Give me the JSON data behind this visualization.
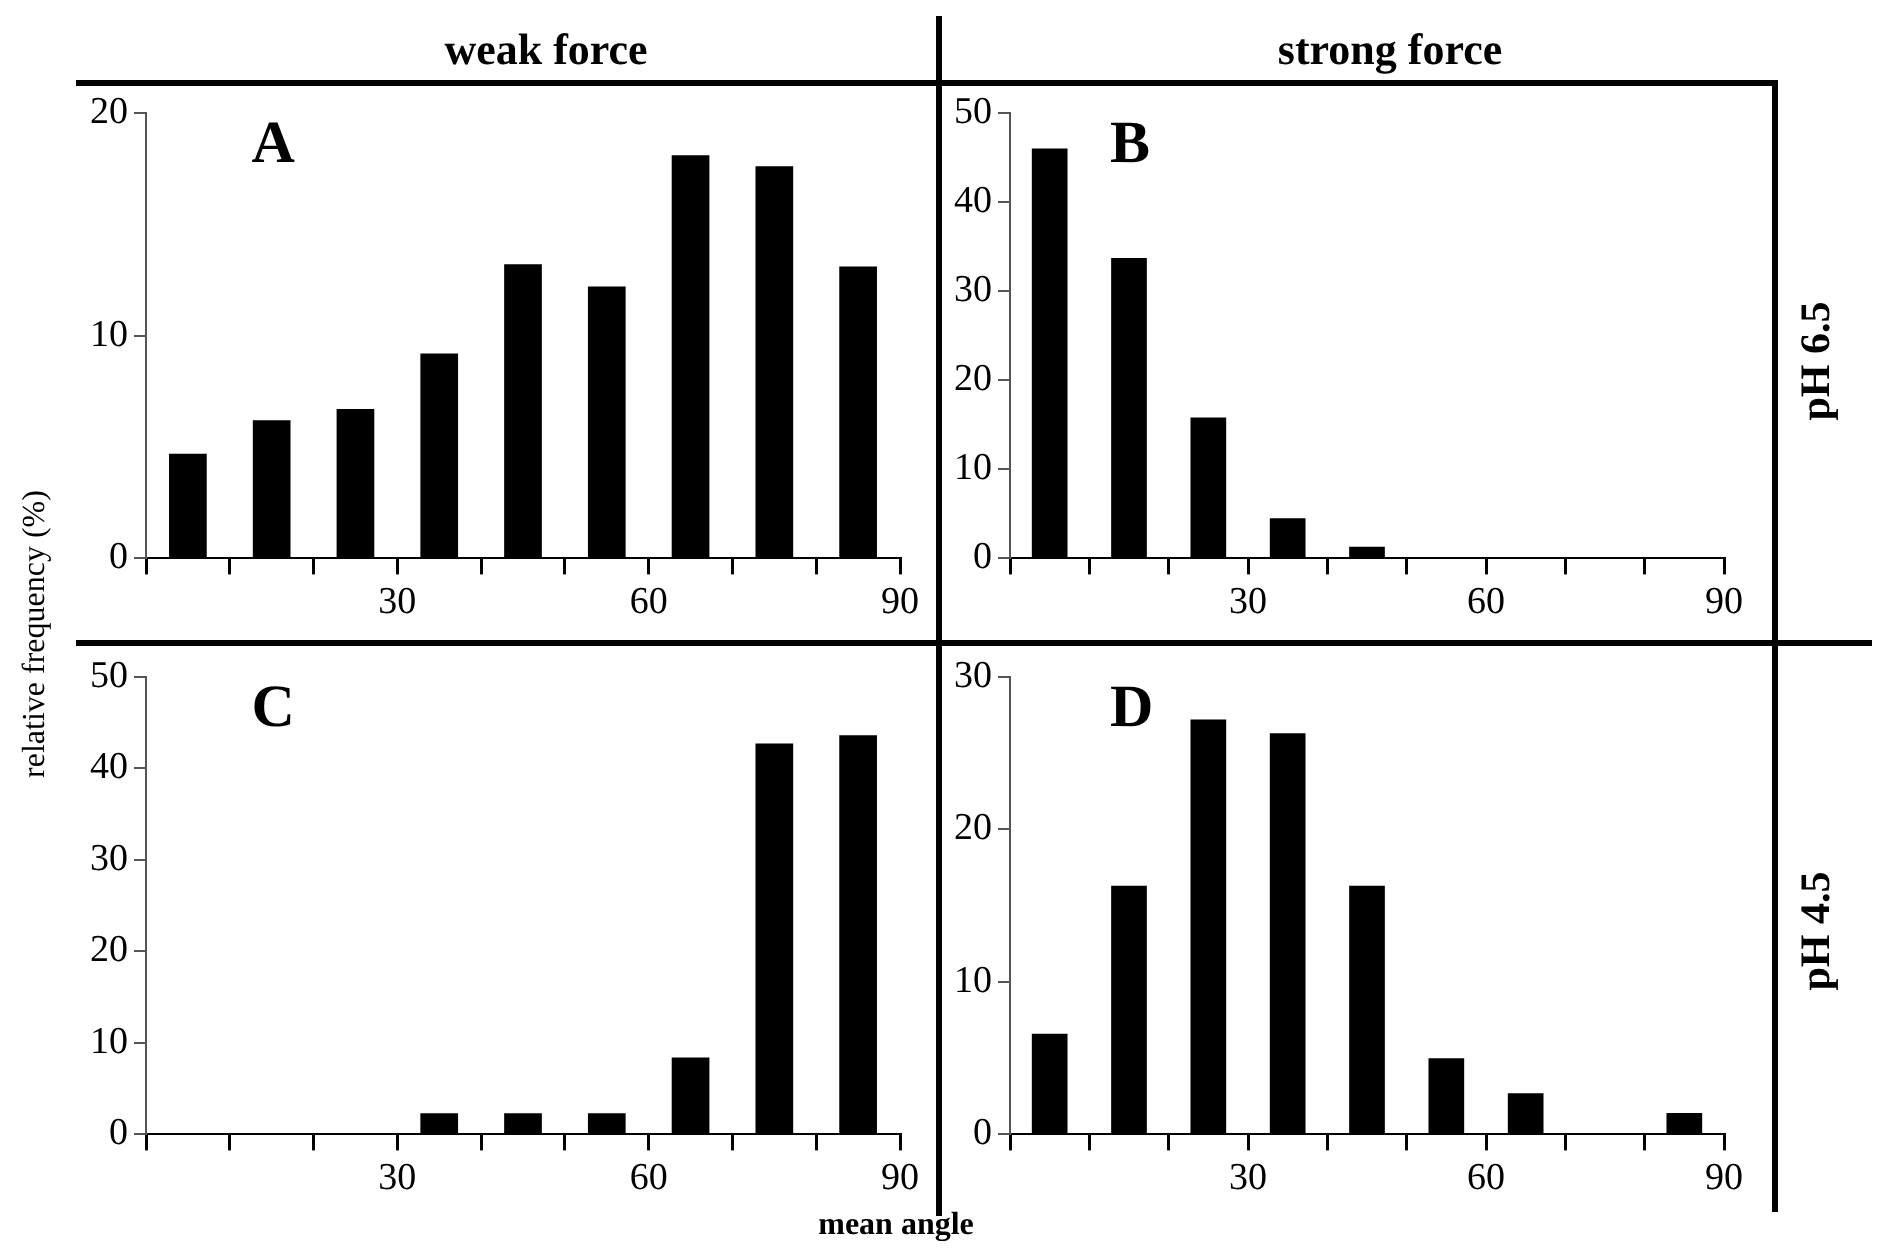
{
  "chart_data": [
    {
      "type": "bar",
      "title": "A",
      "annotations": [
        "weak force"
      ],
      "ylabel": "relative frequency (%)",
      "x": [
        5,
        15,
        25,
        35,
        45,
        55,
        65,
        75,
        85
      ],
      "values": [
        4.7,
        6.2,
        6.7,
        9.2,
        13.2,
        12.2,
        18.1,
        17.6,
        13.1
      ],
      "color": "#000000",
      "xlim": [
        0,
        90
      ],
      "xticks": [
        {
          "value": 0,
          "label": null
        },
        {
          "value": 10,
          "label": null
        },
        {
          "value": 20,
          "label": null
        },
        30,
        {
          "value": 40,
          "label": null
        },
        {
          "value": 50,
          "label": null
        },
        60,
        {
          "value": 70,
          "label": null
        },
        {
          "value": 80,
          "label": null
        },
        90
      ],
      "ylim": [
        0,
        20
      ],
      "yticks": [
        0,
        10,
        20
      ]
    },
    {
      "type": "bar",
      "title": "B",
      "annotations": [
        "strong force",
        "pH 6.5"
      ],
      "x": [
        5,
        15,
        25,
        35,
        45,
        55,
        65,
        75,
        85
      ],
      "values": [
        46,
        33.7,
        15.8,
        4.5,
        1.3,
        0,
        0,
        0,
        0
      ],
      "color": "#000000",
      "xlim": [
        0,
        90
      ],
      "xticks": [
        {
          "value": 0,
          "label": null
        },
        {
          "value": 10,
          "label": null
        },
        {
          "value": 20,
          "label": null
        },
        30,
        {
          "value": 40,
          "label": null
        },
        {
          "value": 50,
          "label": null
        },
        60,
        {
          "value": 70,
          "label": null
        },
        {
          "value": 80,
          "label": null
        },
        90
      ],
      "ylim": [
        0,
        50
      ],
      "yticks": [
        0,
        10,
        20,
        30,
        40,
        50
      ]
    },
    {
      "type": "bar",
      "title": "C",
      "xlabel": "mean angle",
      "x": [
        5,
        15,
        25,
        35,
        45,
        55,
        65,
        75,
        85
      ],
      "values": [
        0,
        0,
        0,
        2.3,
        2.3,
        2.3,
        8.4,
        42.7,
        43.6
      ],
      "color": "#000000",
      "xlim": [
        0,
        90
      ],
      "xticks": [
        {
          "value": 0,
          "label": null
        },
        {
          "value": 10,
          "label": null
        },
        {
          "value": 20,
          "label": null
        },
        30,
        {
          "value": 40,
          "label": null
        },
        {
          "value": 50,
          "label": null
        },
        60,
        {
          "value": 70,
          "label": null
        },
        {
          "value": 80,
          "label": null
        },
        90
      ],
      "ylim": [
        0,
        50
      ],
      "yticks": [
        0,
        10,
        20,
        30,
        40,
        50
      ]
    },
    {
      "type": "bar",
      "title": "D",
      "annotations": [
        "pH 4.5"
      ],
      "x": [
        5,
        15,
        25,
        35,
        45,
        55,
        65,
        75,
        85
      ],
      "values": [
        6.6,
        16.3,
        27.2,
        26.3,
        16.3,
        5.0,
        2.7,
        0,
        1.4
      ],
      "color": "#000000",
      "xlim": [
        0,
        90
      ],
      "xticks": [
        {
          "value": 0,
          "label": null
        },
        {
          "value": 10,
          "label": null
        },
        {
          "value": 20,
          "label": null
        },
        30,
        {
          "value": 40,
          "label": null
        },
        {
          "value": 50,
          "label": null
        },
        60,
        {
          "value": 70,
          "label": null
        },
        {
          "value": 80,
          "label": null
        },
        90
      ],
      "ylim": [
        0,
        30
      ],
      "yticks": [
        0,
        10,
        20,
        30
      ]
    }
  ]
}
